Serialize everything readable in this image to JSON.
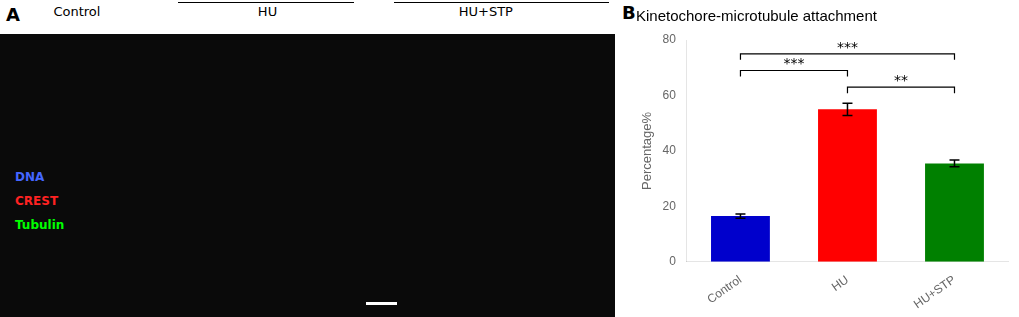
{
  "chart_data": {
    "type": "bar",
    "title": "Kinetochore-microtubule attachment",
    "panel_label": "B",
    "ylabel": "Percentage%",
    "categories": [
      "Control",
      "HU",
      "HU+STP"
    ],
    "values": [
      16.5,
      55.0,
      35.5
    ],
    "errors": [
      0.8,
      2.2,
      1.2
    ],
    "colors": [
      "#0000CC",
      "#FF0000",
      "#008000"
    ],
    "ylim": [
      0,
      80
    ],
    "yticks": [
      0,
      20,
      40,
      60,
      80
    ],
    "grid": false,
    "legend": false,
    "annotations": [
      {
        "from": "Control",
        "to": "HU",
        "y": 69,
        "label": "***",
        "label_y": 70
      },
      {
        "from": "Control",
        "to": "HU+STP",
        "y": 75,
        "label": "***",
        "label_y": 76
      },
      {
        "from": "HU",
        "to": "HU+STP",
        "y": 63,
        "label": "**",
        "label_y": 64
      }
    ],
    "image_panel": {
      "label": "A",
      "groups": [
        "Control",
        "HU",
        "HU+STP"
      ],
      "channels": [
        {
          "name": "DNA",
          "color": "#4466FF"
        },
        {
          "name": "CREST",
          "color": "#FF2222"
        },
        {
          "name": "Tubulin",
          "color": "#00FF00"
        }
      ]
    }
  }
}
